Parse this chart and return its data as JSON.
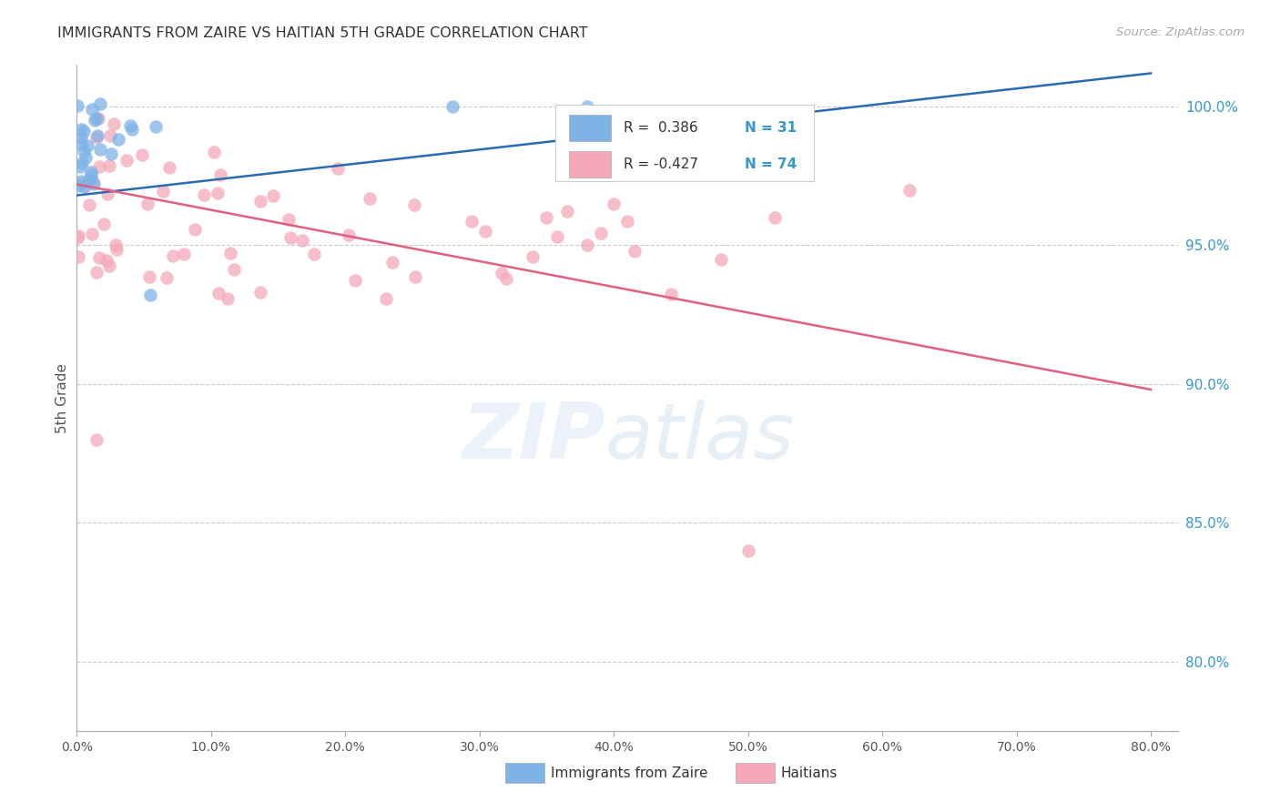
{
  "title": "IMMIGRANTS FROM ZAIRE VS HAITIAN 5TH GRADE CORRELATION CHART",
  "source": "Source: ZipAtlas.com",
  "ylabel": "5th Grade",
  "ytick_labels": [
    "100.0%",
    "95.0%",
    "90.0%",
    "85.0%",
    "80.0%"
  ],
  "ytick_values": [
    1.0,
    0.95,
    0.9,
    0.85,
    0.8
  ],
  "xtick_labels": [
    "0.0%",
    "10.0%",
    "20.0%",
    "30.0%",
    "40.0%",
    "50.0%",
    "60.0%",
    "70.0%",
    "80.0%"
  ],
  "xtick_values": [
    0.0,
    0.1,
    0.2,
    0.3,
    0.4,
    0.5,
    0.6,
    0.7,
    0.8
  ],
  "xlim": [
    0.0,
    0.82
  ],
  "ylim": [
    0.775,
    1.015
  ],
  "zaire_color": "#7eb3e8",
  "haitian_color": "#f4a8b8",
  "zaire_line_color": "#2b6cb0",
  "haitian_line_color": "#e06080",
  "legend_r1_text": "R =  0.386",
  "legend_r2_text": "R = -0.427",
  "legend_n1": "N = 31",
  "legend_n2": "N = 74",
  "zaire_line_x0": 0.0,
  "zaire_line_y0": 0.968,
  "zaire_line_x1": 0.8,
  "zaire_line_y1": 1.012,
  "haitian_line_x0": 0.0,
  "haitian_line_y0": 0.972,
  "haitian_line_x1": 0.8,
  "haitian_line_y1": 0.898
}
